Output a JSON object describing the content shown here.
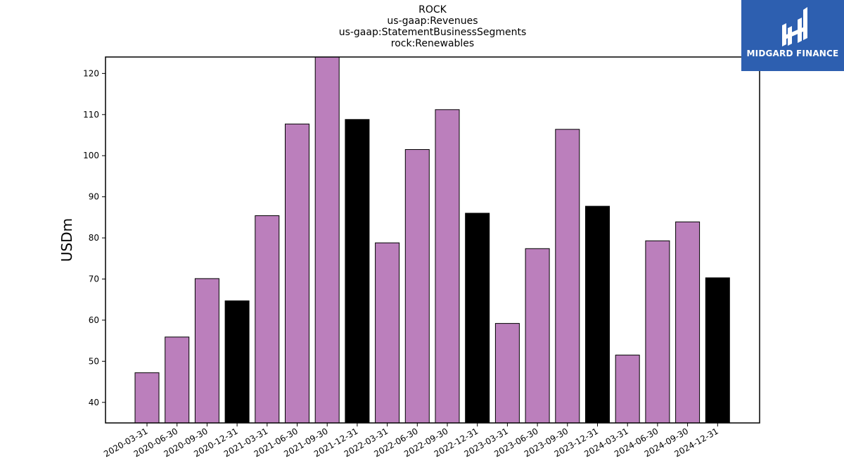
{
  "brand": {
    "name": "MIDGARD FINANCE"
  },
  "colors": {
    "purple": "#bb7fbc",
    "black": "#000000",
    "logo_bg": "#2d5fb0"
  },
  "chart_data": {
    "type": "bar",
    "title": [
      "ROCK",
      "us-gaap:Revenues",
      "us-gaap:StatementBusinessSegments",
      "rock:Renewables"
    ],
    "xlabel": "",
    "ylabel": "USDm",
    "ylim": [
      35,
      124
    ],
    "yticks": [
      40,
      50,
      60,
      70,
      80,
      90,
      100,
      110,
      120
    ],
    "categories": [
      "2020-03-31",
      "2020-06-30",
      "2020-09-30",
      "2020-12-31",
      "2021-03-31",
      "2021-06-30",
      "2021-09-30",
      "2021-12-31",
      "2022-03-31",
      "2022-06-30",
      "2022-09-30",
      "2022-12-31",
      "2023-03-31",
      "2023-06-30",
      "2023-09-30",
      "2023-12-31",
      "2024-03-31",
      "2024-06-30",
      "2024-09-30",
      "2024-12-31"
    ],
    "values": [
      47.2,
      55.9,
      70.1,
      64.7,
      85.4,
      107.7,
      124.0,
      108.8,
      78.8,
      101.5,
      111.2,
      86.0,
      59.2,
      77.4,
      106.4,
      87.7,
      51.5,
      79.3,
      83.9,
      70.3
    ],
    "bar_colors": [
      "purple",
      "purple",
      "purple",
      "black",
      "purple",
      "purple",
      "purple",
      "black",
      "purple",
      "purple",
      "purple",
      "black",
      "purple",
      "purple",
      "purple",
      "black",
      "purple",
      "purple",
      "purple",
      "black"
    ],
    "grid": false
  }
}
